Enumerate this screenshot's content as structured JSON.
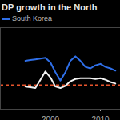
{
  "chart_data": {
    "type": "line",
    "title": "DP growth in the North",
    "x": [
      1995,
      1996,
      1997,
      1998,
      1999,
      2000,
      2001,
      2002,
      2003,
      2004,
      2005,
      2006,
      2007,
      2008,
      2009,
      2010,
      2011,
      2012,
      2013
    ],
    "series": [
      {
        "name": "South Korea",
        "color": "#2f6fe8",
        "values": [
          8,
          8.25,
          8.5,
          8.75,
          9,
          7.5,
          4.25,
          1.5,
          4.25,
          8,
          9.5,
          8,
          6,
          5.5,
          6.5,
          7,
          6,
          5.5,
          4.75
        ]
      },
      {
        "color": "#f2f2f2",
        "values": [
          -0.5,
          -0.75,
          -1,
          1.75,
          4.5,
          2.5,
          -0.5,
          -1,
          -0.25,
          1.25,
          2,
          2.25,
          2.25,
          2.25,
          2,
          2.25,
          1.75,
          1,
          0.5
        ]
      }
    ],
    "xlim": [
      1990,
      2014
    ],
    "xticks": [
      2000,
      2010
    ],
    "ylim": [
      -8,
      19
    ],
    "yticks": [
      0
    ],
    "grid": true,
    "tick_labels": "x"
  }
}
